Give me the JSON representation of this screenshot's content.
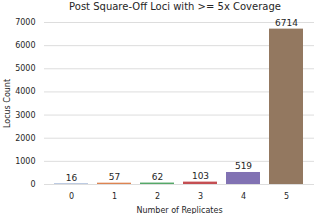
{
  "chart_data": {
    "type": "bar",
    "title": "Post Square-Off Loci with >= 5x Coverage",
    "categories": [
      "0",
      "1",
      "2",
      "3",
      "4",
      "5"
    ],
    "values": [
      16,
      57,
      62,
      103,
      519,
      6714
    ],
    "colors": [
      "#4c72b0",
      "#dd8452",
      "#55a868",
      "#c44e52",
      "#8172b3",
      "#937860"
    ],
    "x_label": "Number of Replicates",
    "y_label": "Locus Count",
    "ylim": [
      0,
      7000
    ],
    "yticks": [
      0,
      1000,
      2000,
      3000,
      4000,
      5000,
      6000,
      7000
    ],
    "grid": true,
    "data_labels": true
  }
}
